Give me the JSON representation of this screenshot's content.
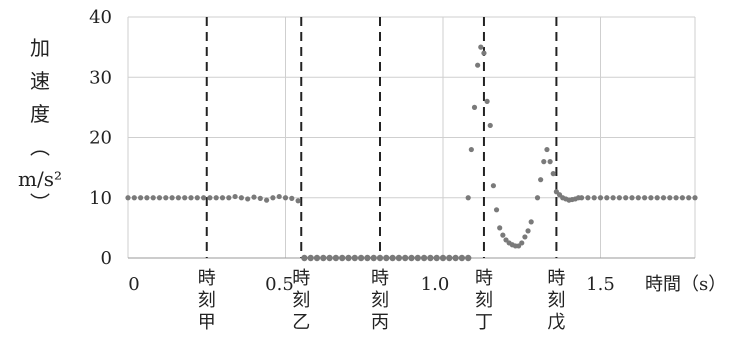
{
  "chart_data": {
    "type": "scatter",
    "ylabel_chars": [
      "加",
      "速",
      "度",
      "︵",
      "m/s²",
      "︶"
    ],
    "xlabel": "時間（s）",
    "xlim": [
      0,
      1.8
    ],
    "ylim": [
      0,
      40
    ],
    "x_ticks": [
      "0",
      "0.5",
      "1.0",
      "1.5"
    ],
    "y_ticks": [
      "0",
      "10",
      "20",
      "30",
      "40"
    ],
    "grid": true,
    "marker_color": "#7a7a7a",
    "markers": [
      {
        "x": 0.25,
        "label": "時刻甲"
      },
      {
        "x": 0.55,
        "label": "時刻乙"
      },
      {
        "x": 0.8,
        "label": "時刻丙"
      },
      {
        "x": 1.13,
        "label": "時刻丁"
      },
      {
        "x": 1.36,
        "label": "時刻戊"
      }
    ],
    "series": [
      {
        "points": [
          [
            0.0,
            10
          ],
          [
            0.02,
            10
          ],
          [
            0.04,
            10
          ],
          [
            0.06,
            10
          ],
          [
            0.08,
            10
          ],
          [
            0.1,
            10
          ],
          [
            0.12,
            10
          ],
          [
            0.14,
            10
          ],
          [
            0.16,
            10
          ],
          [
            0.18,
            10
          ],
          [
            0.2,
            10
          ],
          [
            0.22,
            10
          ],
          [
            0.24,
            10
          ],
          [
            0.26,
            10
          ],
          [
            0.28,
            10
          ],
          [
            0.3,
            10
          ],
          [
            0.32,
            10
          ],
          [
            0.34,
            10.2
          ],
          [
            0.36,
            10
          ],
          [
            0.38,
            9.8
          ],
          [
            0.4,
            10.1
          ],
          [
            0.42,
            9.9
          ],
          [
            0.44,
            9.6
          ],
          [
            0.46,
            10
          ],
          [
            0.48,
            10.2
          ],
          [
            0.5,
            10
          ],
          [
            0.52,
            9.9
          ],
          [
            0.54,
            9.5
          ],
          [
            0.56,
            0
          ],
          [
            0.58,
            0
          ],
          [
            0.6,
            0
          ],
          [
            0.62,
            0
          ],
          [
            0.64,
            0
          ],
          [
            0.66,
            0
          ],
          [
            0.68,
            0
          ],
          [
            0.7,
            0
          ],
          [
            0.72,
            0
          ],
          [
            0.74,
            0
          ],
          [
            0.76,
            0
          ],
          [
            0.78,
            0
          ],
          [
            0.8,
            0
          ],
          [
            0.82,
            0
          ],
          [
            0.84,
            0
          ],
          [
            0.86,
            0
          ],
          [
            0.88,
            0
          ],
          [
            0.9,
            0
          ],
          [
            0.92,
            0
          ],
          [
            0.94,
            0
          ],
          [
            0.96,
            0
          ],
          [
            0.98,
            0
          ],
          [
            1.0,
            0
          ],
          [
            1.02,
            0
          ],
          [
            1.04,
            0
          ],
          [
            1.06,
            0
          ],
          [
            1.08,
            0
          ],
          [
            1.08,
            10
          ],
          [
            1.09,
            18
          ],
          [
            1.1,
            25
          ],
          [
            1.11,
            32
          ],
          [
            1.12,
            35
          ],
          [
            1.13,
            34
          ],
          [
            1.14,
            26
          ],
          [
            1.15,
            22
          ],
          [
            1.16,
            12
          ],
          [
            1.17,
            8
          ],
          [
            1.18,
            5
          ],
          [
            1.19,
            3.8
          ],
          [
            1.2,
            3
          ],
          [
            1.21,
            2.5
          ],
          [
            1.22,
            2.2
          ],
          [
            1.23,
            2
          ],
          [
            1.24,
            2
          ],
          [
            1.25,
            2.5
          ],
          [
            1.26,
            3.5
          ],
          [
            1.27,
            4.5
          ],
          [
            1.28,
            6
          ],
          [
            1.3,
            10
          ],
          [
            1.31,
            13
          ],
          [
            1.32,
            16
          ],
          [
            1.33,
            18
          ],
          [
            1.34,
            16
          ],
          [
            1.35,
            14
          ],
          [
            1.36,
            11
          ],
          [
            1.37,
            10.5
          ],
          [
            1.38,
            10
          ],
          [
            1.39,
            9.8
          ],
          [
            1.4,
            9.6
          ],
          [
            1.41,
            9.7
          ],
          [
            1.42,
            9.8
          ],
          [
            1.43,
            10
          ],
          [
            1.44,
            10
          ],
          [
            1.46,
            10
          ],
          [
            1.48,
            10
          ],
          [
            1.5,
            10
          ],
          [
            1.52,
            10
          ],
          [
            1.54,
            10
          ],
          [
            1.56,
            10
          ],
          [
            1.58,
            10
          ],
          [
            1.6,
            10
          ],
          [
            1.62,
            10
          ],
          [
            1.64,
            10
          ],
          [
            1.66,
            10
          ],
          [
            1.68,
            10
          ],
          [
            1.7,
            10
          ],
          [
            1.72,
            10
          ],
          [
            1.74,
            10
          ],
          [
            1.76,
            10
          ],
          [
            1.78,
            10
          ],
          [
            1.8,
            10
          ]
        ]
      }
    ]
  }
}
